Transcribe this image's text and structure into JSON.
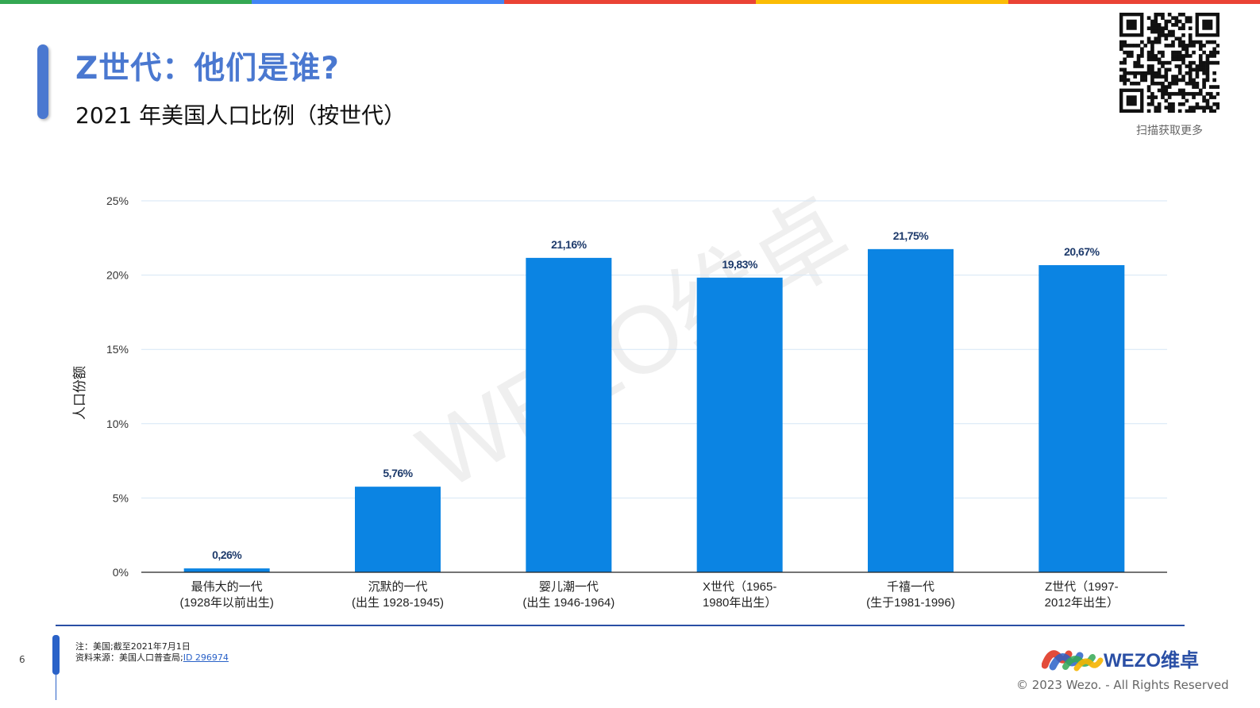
{
  "header": {
    "title": "Z世代：他们是谁?",
    "subtitle": "2021 年美国人口比例（按世代）",
    "stripe_colors": [
      "#34a853",
      "#4285f4",
      "#ea4335",
      "#fbbc05",
      "#ea4335"
    ]
  },
  "qr": {
    "caption": "扫描获取更多"
  },
  "chart_data": {
    "type": "bar",
    "categories": [
      [
        "最伟大的一代",
        "(1928年以前出生)"
      ],
      [
        "沉默的一代",
        "(出生 1928-1945)"
      ],
      [
        "婴儿潮一代",
        "(出生 1946-1964)"
      ],
      [
        "X世代（1965-",
        "1980年出生）"
      ],
      [
        "千禧一代",
        "(生于1981-1996)"
      ],
      [
        "Z世代（1997-",
        "2012年出生）"
      ]
    ],
    "values": [
      0.26,
      5.76,
      21.16,
      19.83,
      21.75,
      20.67
    ],
    "value_labels": [
      "0,26%",
      "5,76%",
      "21,16%",
      "19,83%",
      "21,75%",
      "20,67%"
    ],
    "ylabel": "人口份额",
    "ylim": [
      0,
      25
    ],
    "yticks": [
      0,
      5,
      10,
      15,
      20,
      25
    ],
    "ytick_labels": [
      "0%",
      "5%",
      "10%",
      "15%",
      "20%",
      "25%"
    ],
    "grid": true,
    "bar_color": "#0b84e3",
    "label_color": "#1d3a6b",
    "watermark": "WEZO维卓"
  },
  "footer": {
    "page_number": "6",
    "note": "注：美国;截至2021年7月1日",
    "source_prefix": "资料来源：美国人口普查局;",
    "source_link": "ID 296974",
    "logo_text": "WEZO维卓",
    "copyright": "© 2023 Wezo. - All Rights Reserved"
  }
}
